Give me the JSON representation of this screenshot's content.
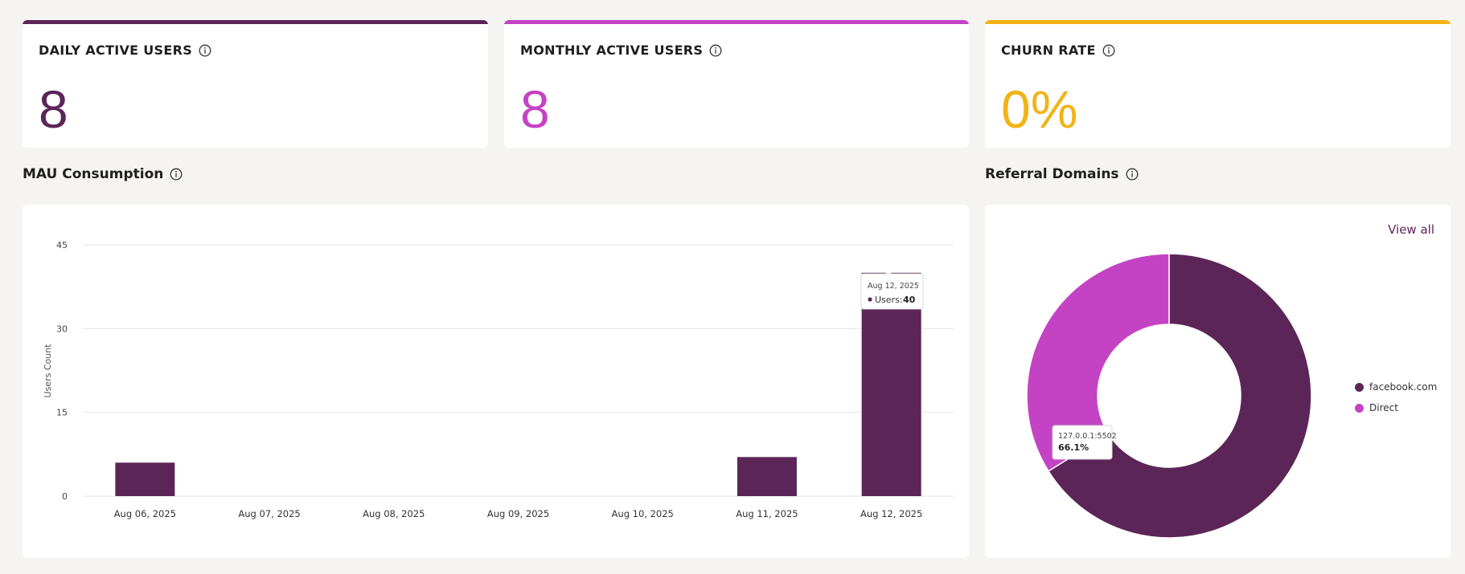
{
  "kpis": [
    {
      "title": "DAILY ACTIVE USERS",
      "value": "8",
      "color": "#5b2657"
    },
    {
      "title": "MONTHLY ACTIVE USERS",
      "value": "8",
      "color": "#c443c4"
    },
    {
      "title": "CHURN RATE",
      "value": "0%",
      "color": "#f2b315"
    }
  ],
  "mau": {
    "title": "MAU Consumption",
    "icon": "info-icon"
  },
  "referral": {
    "title": "Referral Domains",
    "view_all": "View all",
    "tooltip": {
      "label": "127.0.0.1:5502",
      "value": "66.1%"
    },
    "legend": [
      {
        "name": "facebook.com",
        "color": "#5b2657"
      },
      {
        "name": "Direct",
        "color": "#c443c4"
      }
    ]
  },
  "chart_data": [
    {
      "type": "bar",
      "title": "MAU Consumption",
      "categories": [
        "Aug 06, 2025",
        "Aug 07, 2025",
        "Aug 08, 2025",
        "Aug 09, 2025",
        "Aug 10, 2025",
        "Aug 11, 2025",
        "Aug 12, 2025"
      ],
      "values": [
        6,
        0,
        0,
        0,
        0,
        7,
        40
      ],
      "ylabel": "Users Count",
      "ylim": [
        0,
        45
      ],
      "yticks": [
        0,
        15,
        30,
        45
      ],
      "grid": true,
      "color": "#5b2657",
      "tooltip": {
        "date": "Aug 12, 2025",
        "label": "Users:",
        "value": 40
      }
    },
    {
      "type": "pie",
      "title": "Referral Domains",
      "labels": [
        "facebook.com",
        "Direct"
      ],
      "values": [
        66.1,
        33.9
      ],
      "colors": [
        "#5b2657",
        "#c443c4"
      ],
      "legend": "right"
    }
  ]
}
